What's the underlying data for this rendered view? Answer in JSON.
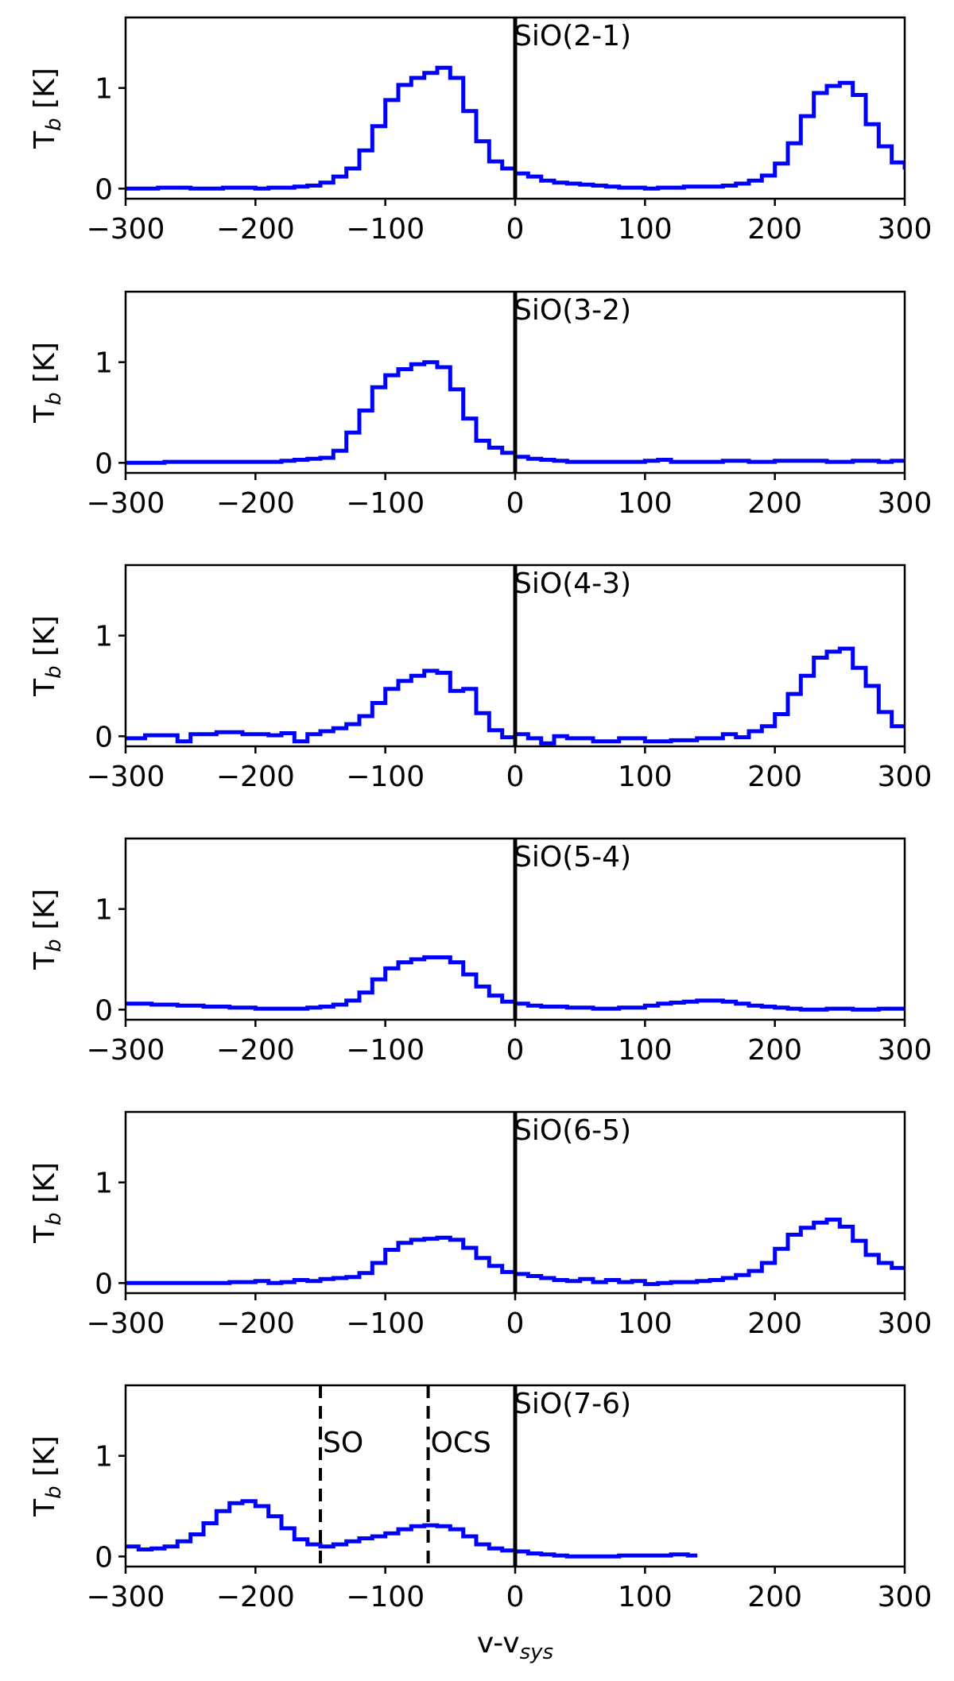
{
  "chart_data": [
    {
      "type": "line",
      "panel_label": "SiO(2-1)",
      "ylabel_main": "T",
      "ylabel_sub": "b",
      "ylabel_unit": " [K]",
      "xlim": [
        -300,
        300
      ],
      "ylim": [
        -0.1,
        1.7
      ],
      "xticks": [
        -300,
        -200,
        -100,
        0,
        100,
        200,
        300
      ],
      "xtick_labels": [
        "−300",
        "−200",
        "−100",
        "0",
        "100",
        "200",
        "300"
      ],
      "yticks": [
        0,
        1
      ],
      "ytick_labels": [
        "0",
        "1"
      ],
      "vlines": [
        {
          "x": 0,
          "style": "solid"
        }
      ],
      "series": [
        {
          "color": "#0000ff",
          "step": true,
          "x": [
            -300,
            -275,
            -250,
            -225,
            -200,
            -190,
            -180,
            -170,
            -160,
            -150,
            -140,
            -130,
            -120,
            -110,
            -100,
            -90,
            -80,
            -70,
            -60,
            -50,
            -40,
            -30,
            -20,
            -10,
            0,
            10,
            20,
            30,
            40,
            50,
            60,
            70,
            80,
            90,
            100,
            110,
            120,
            130,
            140,
            150,
            160,
            170,
            180,
            190,
            200,
            210,
            220,
            230,
            240,
            250,
            260,
            270,
            280,
            290,
            300
          ],
          "y": [
            0.0,
            0.01,
            0.0,
            0.01,
            0.0,
            0.01,
            0.01,
            0.02,
            0.03,
            0.06,
            0.12,
            0.2,
            0.38,
            0.62,
            0.88,
            1.03,
            1.1,
            1.15,
            1.2,
            1.1,
            0.77,
            0.47,
            0.27,
            0.2,
            0.15,
            0.12,
            0.08,
            0.06,
            0.05,
            0.04,
            0.03,
            0.02,
            0.01,
            0.01,
            0.0,
            0.01,
            0.01,
            0.02,
            0.02,
            0.02,
            0.03,
            0.05,
            0.08,
            0.13,
            0.25,
            0.45,
            0.72,
            0.95,
            1.02,
            1.05,
            0.93,
            0.64,
            0.42,
            0.26,
            0.19
          ]
        }
      ]
    },
    {
      "type": "line",
      "panel_label": "SiO(3-2)",
      "ylabel_main": "T",
      "ylabel_sub": "b",
      "ylabel_unit": " [K]",
      "xlim": [
        -300,
        300
      ],
      "ylim": [
        -0.1,
        1.7
      ],
      "xticks": [
        -300,
        -200,
        -100,
        0,
        100,
        200,
        300
      ],
      "xtick_labels": [
        "−300",
        "−200",
        "−100",
        "0",
        "100",
        "200",
        "300"
      ],
      "yticks": [
        0,
        1
      ],
      "ytick_labels": [
        "0",
        "1"
      ],
      "vlines": [
        {
          "x": 0,
          "style": "solid"
        }
      ],
      "series": [
        {
          "color": "#0000ff",
          "step": true,
          "x": [
            -300,
            -270,
            -240,
            -210,
            -180,
            -170,
            -160,
            -150,
            -140,
            -130,
            -120,
            -110,
            -100,
            -90,
            -80,
            -70,
            -60,
            -50,
            -40,
            -30,
            -20,
            -10,
            0,
            10,
            20,
            30,
            40,
            60,
            80,
            100,
            110,
            120,
            140,
            160,
            180,
            200,
            220,
            240,
            260,
            280,
            290,
            300
          ],
          "y": [
            0.0,
            0.01,
            0.01,
            0.01,
            0.02,
            0.03,
            0.04,
            0.05,
            0.12,
            0.3,
            0.52,
            0.75,
            0.87,
            0.93,
            0.98,
            1.0,
            0.95,
            0.73,
            0.44,
            0.22,
            0.15,
            0.1,
            0.06,
            0.04,
            0.03,
            0.02,
            0.01,
            0.01,
            0.01,
            0.02,
            0.03,
            0.01,
            0.01,
            0.02,
            0.01,
            0.02,
            0.02,
            0.01,
            0.02,
            0.01,
            0.02,
            0.0
          ]
        }
      ]
    },
    {
      "type": "line",
      "panel_label": "SiO(4-3)",
      "ylabel_main": "T",
      "ylabel_sub": "b",
      "ylabel_unit": " [K]",
      "xlim": [
        -300,
        300
      ],
      "ylim": [
        -0.1,
        1.7
      ],
      "xticks": [
        -300,
        -200,
        -100,
        0,
        100,
        200,
        300
      ],
      "xtick_labels": [
        "−300",
        "−200",
        "−100",
        "0",
        "100",
        "200",
        "300"
      ],
      "yticks": [
        0,
        1
      ],
      "ytick_labels": [
        "0",
        "1"
      ],
      "vlines": [
        {
          "x": 0,
          "style": "solid"
        }
      ],
      "series": [
        {
          "color": "#0000ff",
          "step": true,
          "x": [
            -300,
            -285,
            -260,
            -250,
            -230,
            -210,
            -190,
            -180,
            -170,
            -160,
            -150,
            -140,
            -130,
            -120,
            -110,
            -100,
            -90,
            -80,
            -70,
            -60,
            -50,
            -40,
            -30,
            -20,
            -10,
            0,
            10,
            20,
            30,
            40,
            60,
            80,
            100,
            120,
            140,
            160,
            170,
            180,
            190,
            200,
            210,
            220,
            230,
            240,
            250,
            260,
            270,
            280,
            290,
            300
          ],
          "y": [
            -0.02,
            0.01,
            -0.05,
            0.02,
            0.04,
            0.02,
            0.01,
            0.03,
            -0.05,
            0.02,
            0.05,
            0.08,
            0.12,
            0.2,
            0.33,
            0.47,
            0.55,
            0.6,
            0.65,
            0.63,
            0.45,
            0.47,
            0.23,
            0.06,
            -0.01,
            0.02,
            -0.02,
            -0.07,
            0.0,
            -0.02,
            -0.05,
            -0.02,
            -0.05,
            -0.04,
            -0.02,
            0.02,
            -0.01,
            0.05,
            0.1,
            0.22,
            0.42,
            0.6,
            0.78,
            0.84,
            0.87,
            0.68,
            0.5,
            0.24,
            0.1,
            0.08
          ]
        }
      ]
    },
    {
      "type": "line",
      "panel_label": "SiO(5-4)",
      "ylabel_main": "T",
      "ylabel_sub": "b",
      "ylabel_unit": " [K]",
      "xlim": [
        -300,
        300
      ],
      "ylim": [
        -0.1,
        1.7
      ],
      "xticks": [
        -300,
        -200,
        -100,
        0,
        100,
        200,
        300
      ],
      "xtick_labels": [
        "−300",
        "−200",
        "−100",
        "0",
        "100",
        "200",
        "300"
      ],
      "yticks": [
        0,
        1
      ],
      "ytick_labels": [
        "0",
        "1"
      ],
      "vlines": [
        {
          "x": 0,
          "style": "solid"
        }
      ],
      "series": [
        {
          "color": "#0000ff",
          "step": true,
          "x": [
            -300,
            -280,
            -260,
            -240,
            -220,
            -200,
            -180,
            -160,
            -150,
            -140,
            -130,
            -120,
            -110,
            -100,
            -90,
            -80,
            -70,
            -60,
            -50,
            -40,
            -30,
            -20,
            -10,
            0,
            10,
            20,
            40,
            60,
            80,
            100,
            110,
            120,
            130,
            140,
            150,
            160,
            170,
            180,
            190,
            200,
            210,
            220,
            240,
            260,
            280,
            300
          ],
          "y": [
            0.06,
            0.05,
            0.04,
            0.03,
            0.02,
            0.01,
            0.01,
            0.02,
            0.03,
            0.05,
            0.09,
            0.17,
            0.3,
            0.41,
            0.47,
            0.5,
            0.52,
            0.52,
            0.47,
            0.35,
            0.23,
            0.14,
            0.08,
            0.06,
            0.04,
            0.03,
            0.02,
            0.01,
            0.02,
            0.04,
            0.06,
            0.07,
            0.08,
            0.09,
            0.09,
            0.08,
            0.06,
            0.04,
            0.03,
            0.02,
            0.01,
            0.0,
            0.01,
            0.0,
            0.01,
            0.02
          ]
        }
      ]
    },
    {
      "type": "line",
      "panel_label": "SiO(6-5)",
      "ylabel_main": "T",
      "ylabel_sub": "b",
      "ylabel_unit": " [K]",
      "xlim": [
        -300,
        300
      ],
      "ylim": [
        -0.1,
        1.7
      ],
      "xticks": [
        -300,
        -200,
        -100,
        0,
        100,
        200,
        300
      ],
      "xtick_labels": [
        "−300",
        "−200",
        "−100",
        "0",
        "100",
        "200",
        "300"
      ],
      "yticks": [
        0,
        1
      ],
      "ytick_labels": [
        "0",
        "1"
      ],
      "vlines": [
        {
          "x": 0,
          "style": "solid"
        }
      ],
      "series": [
        {
          "color": "#0000ff",
          "step": true,
          "x": [
            -300,
            -270,
            -240,
            -220,
            -200,
            -190,
            -180,
            -170,
            -160,
            -150,
            -140,
            -130,
            -120,
            -110,
            -100,
            -90,
            -80,
            -70,
            -60,
            -50,
            -40,
            -30,
            -20,
            -10,
            0,
            10,
            20,
            30,
            40,
            50,
            60,
            70,
            80,
            90,
            100,
            110,
            120,
            130,
            140,
            150,
            160,
            170,
            180,
            190,
            200,
            210,
            220,
            230,
            240,
            250,
            260,
            270,
            280,
            290,
            300
          ],
          "y": [
            0.0,
            0.0,
            0.0,
            0.01,
            0.02,
            0.0,
            0.01,
            0.03,
            0.02,
            0.04,
            0.05,
            0.06,
            0.1,
            0.2,
            0.33,
            0.4,
            0.43,
            0.44,
            0.45,
            0.43,
            0.35,
            0.25,
            0.17,
            0.11,
            0.09,
            0.07,
            0.05,
            0.03,
            0.02,
            0.04,
            0.01,
            0.03,
            0.01,
            0.02,
            -0.01,
            0.0,
            0.01,
            0.01,
            0.02,
            0.03,
            0.05,
            0.08,
            0.12,
            0.2,
            0.34,
            0.48,
            0.55,
            0.6,
            0.63,
            0.56,
            0.42,
            0.28,
            0.2,
            0.15,
            0.15
          ]
        }
      ]
    },
    {
      "type": "line",
      "panel_label": "SiO(7-6)",
      "ylabel_main": "T",
      "ylabel_sub": "b",
      "ylabel_unit": " [K]",
      "xlabel_main": "v-v",
      "xlabel_sub": "sys",
      "xlim": [
        -300,
        300
      ],
      "ylim": [
        -0.1,
        1.7
      ],
      "xticks": [
        -300,
        -200,
        -100,
        0,
        100,
        200,
        300
      ],
      "xtick_labels": [
        "−300",
        "−200",
        "−100",
        "0",
        "100",
        "200",
        "300"
      ],
      "yticks": [
        0,
        1
      ],
      "ytick_labels": [
        "0",
        "1"
      ],
      "vlines": [
        {
          "x": 0,
          "style": "solid"
        },
        {
          "x": -150,
          "style": "dashed",
          "label": "SO"
        },
        {
          "x": -67,
          "style": "dashed",
          "label": "OCS"
        }
      ],
      "series": [
        {
          "color": "#0000ff",
          "step": true,
          "x": [
            -300,
            -290,
            -280,
            -270,
            -260,
            -250,
            -240,
            -230,
            -220,
            -210,
            -200,
            -190,
            -180,
            -170,
            -160,
            -150,
            -140,
            -130,
            -120,
            -110,
            -100,
            -90,
            -80,
            -70,
            -60,
            -50,
            -40,
            -30,
            -20,
            -10,
            0,
            10,
            20,
            30,
            40,
            60,
            80,
            100,
            120,
            133
          ],
          "y": [
            0.1,
            0.07,
            0.08,
            0.1,
            0.15,
            0.22,
            0.33,
            0.45,
            0.53,
            0.55,
            0.5,
            0.4,
            0.28,
            0.17,
            0.12,
            0.1,
            0.12,
            0.15,
            0.18,
            0.2,
            0.23,
            0.27,
            0.3,
            0.31,
            0.3,
            0.27,
            0.2,
            0.12,
            0.08,
            0.06,
            0.05,
            0.03,
            0.02,
            0.01,
            0.0,
            0.0,
            0.01,
            0.01,
            0.02,
            0.01
          ]
        }
      ]
    }
  ]
}
